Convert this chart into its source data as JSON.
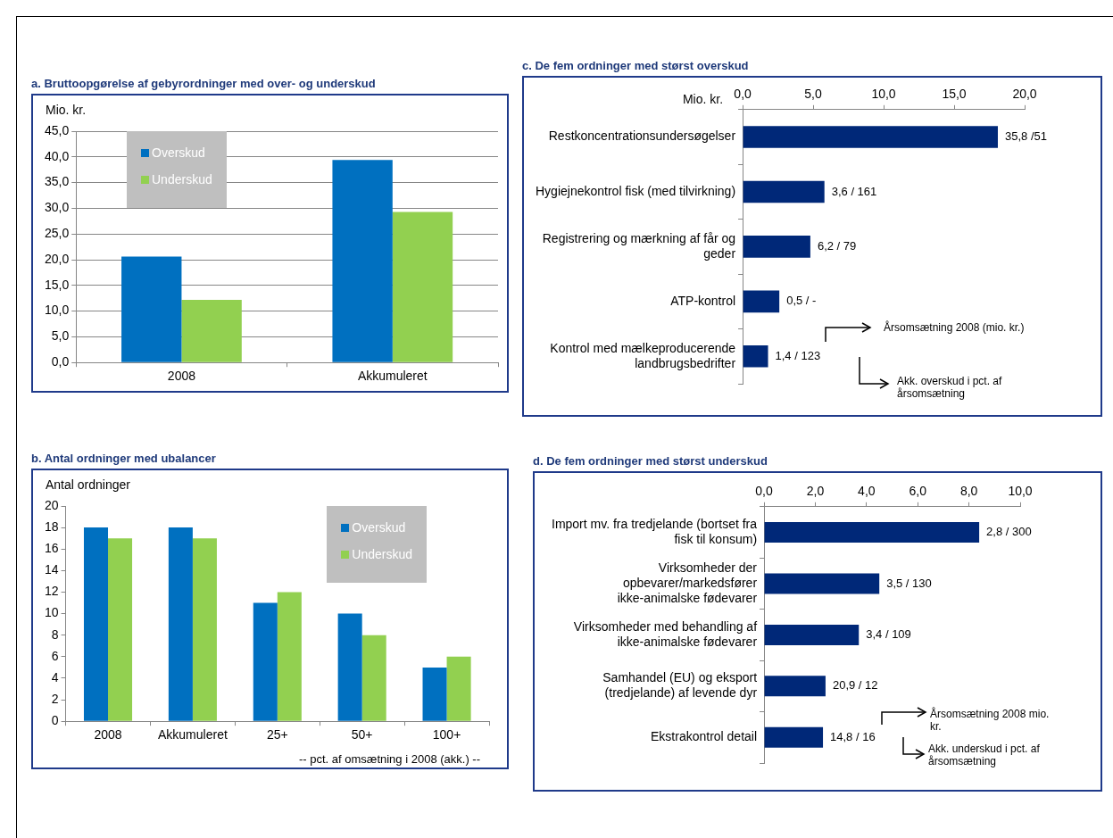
{
  "chart_data": [
    {
      "type": "bar",
      "title": "a. Bruttoopgørelse af gebyrordninger med over- og underskud",
      "ylabel": "Mio. kr.",
      "categories": [
        "2008",
        "Akkumuleret"
      ],
      "series": [
        {
          "name": "Overskud",
          "color": "#0070c0",
          "values": [
            20.6,
            39.4
          ]
        },
        {
          "name": "Underskud",
          "color": "#92d050",
          "values": [
            12.2,
            29.3
          ]
        }
      ],
      "ylim": [
        0,
        45
      ],
      "yticks": [
        {
          "value": 0,
          "label": "0,0"
        },
        {
          "value": 5,
          "label": "5,0"
        },
        {
          "value": 10,
          "label": "10,0"
        },
        {
          "value": 15,
          "label": "15,0"
        },
        {
          "value": 20,
          "label": "20,0"
        },
        {
          "value": 25,
          "label": "25,0"
        },
        {
          "value": 30,
          "label": "30,0"
        },
        {
          "value": 35,
          "label": "35,0"
        },
        {
          "value": 40,
          "label": "40,0"
        },
        {
          "value": 45,
          "label": "45,0"
        }
      ],
      "grid": "y",
      "legend": "top left"
    },
    {
      "type": "bar",
      "orientation": "horizontal",
      "title": "c. De fem ordninger med størst overskud",
      "xlabel": "Mio. kr.",
      "categories": [
        "Restkoncentrationsundersøgelser",
        "Hygiejnekontrol fisk (med tilvirkning)",
        "Registrering og mærkning af får og geder",
        "ATP-kontrol",
        "Kontrol med mælkeproducerende landbrugsbedrifter"
      ],
      "series": [
        {
          "color": "#002878",
          "values": [
            18.1,
            5.8,
            4.8,
            2.6,
            1.8
          ]
        }
      ],
      "xlim": [
        0,
        20
      ],
      "xticks": [
        {
          "value": 0,
          "label": "0,0"
        },
        {
          "value": 5,
          "label": "5,0"
        },
        {
          "value": 10,
          "label": "10,0"
        },
        {
          "value": 15,
          "label": "15,0"
        },
        {
          "value": 20,
          "label": "20,0"
        }
      ],
      "grid": false,
      "legend": false,
      "annotations": [
        "Årsomsætning 2008 (mio. kr.)",
        "Akk. overskud i pct. af årsomsætning",
        {
          "text": "35,8 /51",
          "x": 18.1,
          "y": "Restkoncentrationsundersøgelser"
        },
        {
          "text": "3,6 / 161",
          "x": 5.8,
          "y": "Hygiejnekontrol fisk (med tilvirkning)"
        },
        {
          "text": "6,2 / 79",
          "x": 4.8,
          "y": "Registrering og mærkning af får og geder"
        },
        {
          "text": "0,5 / -",
          "x": 2.6,
          "y": "ATP-kontrol"
        },
        {
          "text": "1,4 / 123",
          "x": 1.8,
          "y": "Kontrol med mælkeproducerende landbrugsbedrifter"
        }
      ]
    },
    {
      "type": "bar",
      "title": "b. Antal ordninger med ubalancer",
      "ylabel": "Antal ordninger",
      "xlabel": "-- pct. af omsætning i 2008 (akk.) --",
      "categories": [
        "2008",
        "Akkumuleret",
        "25+",
        "50+",
        "100+"
      ],
      "series": [
        {
          "name": "Overskud",
          "color": "#0070c0",
          "values": [
            18,
            18,
            11,
            10,
            5
          ]
        },
        {
          "name": "Underskud",
          "color": "#92d050",
          "values": [
            17,
            17,
            12,
            8,
            6
          ]
        }
      ],
      "ylim": [
        0,
        20
      ],
      "yticks": [
        0,
        2,
        4,
        6,
        8,
        10,
        12,
        14,
        16,
        18,
        20
      ],
      "grid": false,
      "legend": "top right"
    },
    {
      "type": "bar",
      "orientation": "horizontal",
      "title": "d. De fem ordninger med størst underskud",
      "categories": [
        "Import mv. fra tredjelande (bortset fra fisk til konsum)",
        "Virksomheder der opbevarer/markedsfører ikke-animalske fødevarer",
        "Virksomheder med behandling af ikke-animalske fødevarer",
        "Samhandel (EU) og eksport (tredjelande) af levende dyr",
        "Ekstrakontrol detail"
      ],
      "series": [
        {
          "color": "#002878",
          "values": [
            8.4,
            4.5,
            3.7,
            2.4,
            2.3
          ]
        }
      ],
      "xlim": [
        0,
        10
      ],
      "xticks": [
        {
          "value": 0,
          "label": "0,0"
        },
        {
          "value": 2,
          "label": "2,0"
        },
        {
          "value": 4,
          "label": "4,0"
        },
        {
          "value": 6,
          "label": "6,0"
        },
        {
          "value": 8,
          "label": "8,0"
        },
        {
          "value": 10,
          "label": "10,0"
        }
      ],
      "grid": false,
      "legend": false,
      "annotations": [
        "Årsomsætning 2008 mio. kr.",
        "Akk. underskud i pct. af årsomsætning",
        {
          "text": "2,8 / 300",
          "x": 8.4,
          "y": "Import mv. fra tredjelande (bortset fra fisk til konsum)"
        },
        {
          "text": "3,5 / 130",
          "x": 4.5,
          "y": "Virksomheder der opbevarer/markedsfører ikke-animalske fødevarer"
        },
        {
          "text": "3,4 / 109",
          "x": 3.7,
          "y": "Virksomheder med behandling af ikke-animalske fødevarer"
        },
        {
          "text": "20,9 / 12",
          "x": 2.4,
          "y": "Samhandel (EU) og eksport (tredjelande) af levende dyr"
        },
        {
          "text": "14,8 / 16",
          "x": 2.3,
          "y": "Ekstrakontrol detail"
        }
      ]
    }
  ]
}
